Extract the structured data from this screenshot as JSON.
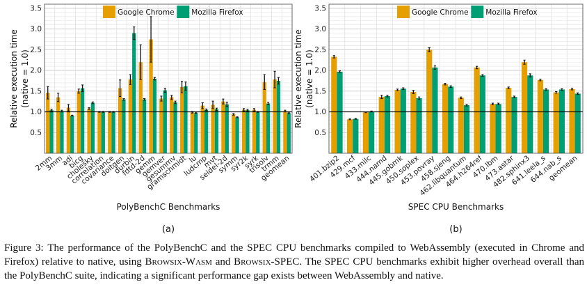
{
  "chart_data": [
    {
      "type": "bar",
      "panel_label": "(a)",
      "xlabel": "PolyBenchC Benchmarks",
      "ylabel": "Relative execution time (native = 1.0)",
      "ylabel_lines": [
        "Relative execution time",
        "(native = 1.0)"
      ],
      "ylim": [
        0,
        3.6
      ],
      "yticks": [
        0.5,
        1.0,
        1.5,
        2.0,
        2.5,
        3.0,
        3.5
      ],
      "ytick_labels": [
        "0.5",
        "1.0",
        "1.5",
        "2.0",
        "2.5",
        "3.0",
        "3.5"
      ],
      "reference_line": 1.0,
      "grid": true,
      "legend_position": "top-center",
      "categories": [
        "2mm",
        "3mm",
        "adi",
        "bicg",
        "cholesky",
        "correlation",
        "covariance",
        "doitgen",
        "durbin",
        "fdtd-2d",
        "gemm",
        "gemver",
        "gesummv",
        "gramschmidt",
        "lu",
        "ludcmp",
        "mvt",
        "seidel-2d",
        "symm",
        "syr2k",
        "syrk",
        "trisolv",
        "trmm",
        "geomean"
      ],
      "series": [
        {
          "name": "Google Chrome",
          "color": "#e69f00",
          "values": [
            1.46,
            1.35,
            1.1,
            1.5,
            1.08,
            1.0,
            1.0,
            1.57,
            1.78,
            2.2,
            2.75,
            1.32,
            1.35,
            1.6,
            0.99,
            1.15,
            1.17,
            1.25,
            0.94,
            1.05,
            1.05,
            1.72,
            1.78,
            1.02
          ],
          "errors": [
            0.15,
            0.1,
            0.08,
            0.05,
            0.02,
            0.01,
            0.01,
            0.2,
            0.12,
            0.42,
            0.55,
            0.06,
            0.05,
            0.14,
            0.02,
            0.07,
            0.09,
            0.06,
            0.02,
            0.03,
            0.03,
            0.18,
            0.2,
            0.02
          ]
        },
        {
          "name": "Mozilla Firefox",
          "color": "#009e73",
          "values": [
            1.04,
            1.02,
            0.91,
            1.57,
            1.22,
            1.0,
            1.0,
            1.3,
            2.9,
            1.3,
            1.8,
            1.52,
            1.23,
            1.62,
            0.97,
            1.05,
            1.06,
            1.18,
            0.87,
            1.04,
            1.0,
            1.2,
            1.75,
            0.97
          ],
          "errors": [
            0.02,
            0.02,
            0.01,
            0.08,
            0.02,
            0.01,
            0.01,
            0.02,
            0.15,
            0.02,
            0.03,
            0.05,
            0.03,
            0.1,
            0.01,
            0.02,
            0.03,
            0.05,
            0.01,
            0.02,
            0.01,
            0.03,
            0.08,
            0.01
          ]
        }
      ]
    },
    {
      "type": "bar",
      "panel_label": "(b)",
      "xlabel": "SPEC CPU Benchmarks",
      "ylabel": "Relative execution time (native = 1.0)",
      "ylabel_lines": [
        "Relative execution time",
        "(native = 1.0)"
      ],
      "ylim": [
        0,
        3.6
      ],
      "yticks": [
        0.5,
        1.0,
        1.5,
        2.0,
        2.5,
        3.0,
        3.5
      ],
      "ytick_labels": [
        "0.5",
        "1.0",
        "1.5",
        "2.0",
        "2.5",
        "3.0",
        "3.5"
      ],
      "reference_line": 1.0,
      "grid": true,
      "legend_position": "top-center",
      "categories": [
        "401.bzip2",
        "429.mcf",
        "433.milc",
        "444.namd",
        "445.gobmk",
        "450.soplex",
        "453.povray",
        "458.sjeng",
        "462.libquantum",
        "464.h264ref",
        "470.lbm",
        "473.astar",
        "482.sphinx3",
        "641.leela_s",
        "644.nab_s",
        "geomean"
      ],
      "series": [
        {
          "name": "Google Chrome",
          "color": "#e69f00",
          "values": [
            2.33,
            0.82,
            0.99,
            1.36,
            1.53,
            1.48,
            2.5,
            1.67,
            1.34,
            2.07,
            1.19,
            1.58,
            2.2,
            1.77,
            1.47,
            1.55
          ],
          "errors": [
            0.03,
            0.01,
            0.01,
            0.04,
            0.02,
            0.04,
            0.05,
            0.02,
            0.02,
            0.03,
            0.02,
            0.02,
            0.05,
            0.02,
            0.02,
            0.02
          ]
        },
        {
          "name": "Mozilla Firefox",
          "color": "#009e73",
          "values": [
            1.97,
            0.83,
            1.01,
            1.38,
            1.56,
            1.33,
            2.07,
            1.61,
            1.16,
            1.88,
            1.19,
            1.36,
            1.88,
            1.54,
            1.54,
            1.44
          ],
          "errors": [
            0.02,
            0.01,
            0.01,
            0.02,
            0.02,
            0.03,
            0.04,
            0.02,
            0.02,
            0.02,
            0.02,
            0.02,
            0.04,
            0.02,
            0.02,
            0.02
          ]
        }
      ]
    }
  ],
  "caption": {
    "part1": "Figure 3: The performance of the PolyBenchC and the SPEC CPU benchmarks compiled to WebAssembly (executed in Chrome and Firefox) relative to native, using ",
    "sc1": "Browsix-Wasm",
    "part2": " and ",
    "sc2": "Browsix-SPEC",
    "part3": ". The SPEC CPU benchmarks exhibit higher overhead overall than the PolyBenchC suite, indicating a significant performance gap exists between WebAssembly and native."
  }
}
